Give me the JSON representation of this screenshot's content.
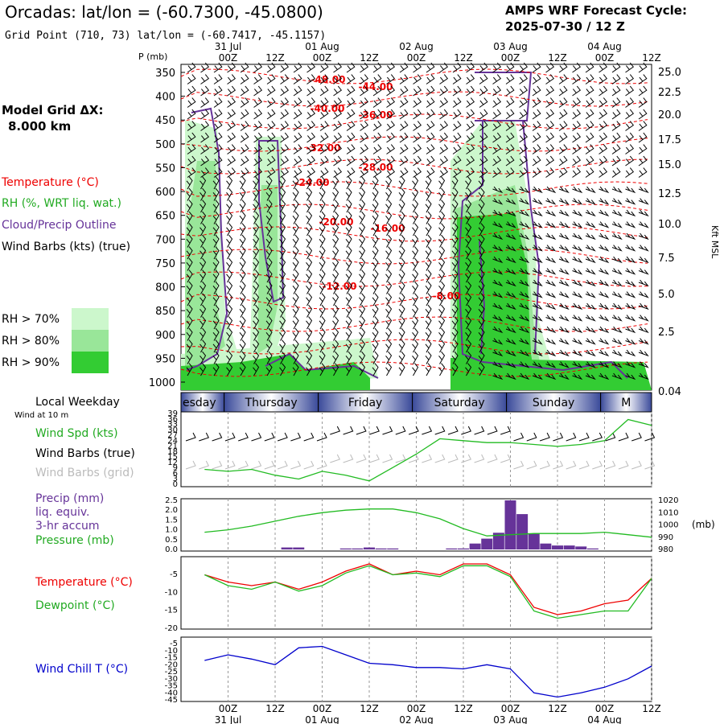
{
  "header": {
    "title": "Orcadas:  lat/lon = (-60.7300, -45.0800)",
    "grid_point": "Grid Point (710, 73) lat/lon = (-60.7417, -45.1157)",
    "cycle_label": "AMPS WRF Forecast Cycle:",
    "cycle_value": "2025-07-30 / 12  Z"
  },
  "sidebar": {
    "model_grid_label": "Model Grid ΔX:",
    "model_grid_value": "8.000 km",
    "legend_temperature": "Temperature (°C)",
    "legend_rh": "RH (%, WRT liq. wat.)",
    "legend_cloud": "Cloud/Precip Outline",
    "legend_barbs": "Wind Barbs (kts) (true)",
    "rh_levels": [
      "RH > 70%",
      "RH > 80%",
      "RH > 90%"
    ],
    "local_weekday": "Local Weekday",
    "wind_at": "Wind at 10 m",
    "wind_spd": "Wind Spd (kts)",
    "wind_barbs_true": "Wind Barbs (true)",
    "wind_barbs_grid": "Wind Barbs (grid)",
    "precip_1": "Precip (mm)",
    "precip_2": "liq. equiv.",
    "precip_3": "3-hr accum",
    "pressure": "Pressure (mb)",
    "temperature": "Temperature (°C)",
    "dewpoint": "Dewpoint (°C)",
    "wind_chill": "Wind Chill T (°C)"
  },
  "colors": {
    "rh70": "#ccf7cc",
    "rh80": "#99e699",
    "rh90": "#33cc33",
    "temp": "#ee0000",
    "cloud": "#663399",
    "green_line": "#22bb22",
    "precip": "#663399",
    "windchill": "#0000cc",
    "grid": "#999999"
  },
  "chart_data": [
    {
      "type": "heatmap",
      "title": "Time-height cross section",
      "ylabel_left": "P (mb)",
      "ylabel_right": "Kft MSL",
      "pressure_ticks": [
        "350",
        "400",
        "450",
        "500",
        "550",
        "600",
        "650",
        "700",
        "750",
        "800",
        "850",
        "900",
        "950",
        "1000"
      ],
      "height_ticks": [
        "25.0",
        "22.5",
        "20.0",
        "17.5",
        "15.0",
        "12.5",
        "10.0",
        "7.5",
        "5.0",
        "2.5",
        "0.04"
      ],
      "time_ticks": [
        "00Z",
        "12Z",
        "00Z",
        "12Z",
        "00Z",
        "12Z",
        "00Z",
        "12Z",
        "00Z",
        "12Z"
      ],
      "date_ticks": [
        "31 Jul",
        "01 Aug",
        "02 Aug",
        "03 Aug",
        "04 Aug"
      ],
      "temperature_labels": [
        "-48.00",
        "-44.00",
        "-40.00",
        "-36.00",
        "-32.00",
        "-28.00",
        "-24.00",
        "-20.00",
        "-16.00",
        "-12.00",
        "-8.00"
      ]
    },
    {
      "type": "line",
      "title": "Local Weekday / 10 m wind",
      "weekdays": [
        "esday",
        "Thursday",
        "Friday",
        "Saturday",
        "Sunday",
        "M"
      ],
      "y_ticks": [
        "39",
        "36",
        "33",
        "30",
        "27",
        "24",
        "21",
        "18",
        "15",
        "12",
        "9",
        "6",
        "3",
        "0"
      ],
      "series": [
        {
          "name": "Wind Spd (kts)",
          "x_hours": [
            0,
            6,
            12,
            18,
            24,
            30,
            36,
            42,
            48,
            54,
            60,
            66,
            72,
            78,
            84,
            90,
            96,
            102,
            108,
            114
          ],
          "values": [
            9,
            8,
            9,
            6,
            4,
            8,
            6,
            3,
            10,
            17,
            25,
            24,
            23,
            23,
            22,
            21,
            22,
            24,
            35,
            32
          ]
        }
      ]
    },
    {
      "type": "bar",
      "title": "Precip / Pressure",
      "y_ticks_left": [
        "2.5",
        "2.0",
        "1.5",
        "1.0",
        "0.5",
        "0.0"
      ],
      "y_ticks_right": [
        "1020",
        "1010",
        "1000",
        "990",
        "980"
      ],
      "ylabel_right": "(mb)",
      "precip": {
        "x_hours": [
          15,
          18,
          21,
          24,
          27,
          30,
          33,
          36,
          39,
          42,
          45,
          48,
          51,
          54,
          57,
          60,
          63,
          66,
          69,
          72,
          75,
          78,
          81,
          84,
          87,
          90,
          93,
          96,
          99,
          102,
          105,
          108,
          111,
          114
        ],
        "values": [
          0,
          0,
          0.1,
          0.1,
          0,
          0,
          0,
          0.05,
          0.05,
          0.1,
          0.05,
          0.05,
          0,
          0,
          0,
          0,
          0.05,
          0.05,
          0.3,
          0.55,
          0.85,
          2.5,
          1.8,
          0.8,
          0.3,
          0.2,
          0.2,
          0.15,
          0.05,
          0,
          0,
          0,
          0,
          0
        ]
      },
      "series": [
        {
          "name": "Pressure (mb)",
          "x_hours": [
            0,
            6,
            12,
            18,
            24,
            30,
            36,
            42,
            48,
            54,
            60,
            66,
            72,
            78,
            84,
            90,
            96,
            102,
            108,
            114
          ],
          "values": [
            994,
            996,
            999,
            1003,
            1007,
            1010,
            1012,
            1013,
            1013,
            1010,
            1005,
            997,
            991,
            992,
            993,
            993,
            993,
            994,
            992,
            990
          ]
        }
      ]
    },
    {
      "type": "line",
      "title": "Temperature / Dewpoint",
      "y_ticks": [
        "-5",
        "-10",
        "-15",
        "-20"
      ],
      "series": [
        {
          "name": "Temperature (°C)",
          "x_hours": [
            0,
            6,
            12,
            18,
            24,
            30,
            36,
            42,
            48,
            54,
            60,
            66,
            72,
            78,
            84,
            90,
            96,
            102,
            108,
            114
          ],
          "values": [
            -5,
            -7,
            -8,
            -7,
            -9,
            -7,
            -4,
            -2,
            -5,
            -4,
            -5,
            -2,
            -2,
            -5,
            -14,
            -16,
            -15,
            -13,
            -12,
            -6
          ]
        },
        {
          "name": "Dewpoint (°C)",
          "x_hours": [
            0,
            6,
            12,
            18,
            24,
            30,
            36,
            42,
            48,
            54,
            60,
            66,
            72,
            78,
            84,
            90,
            96,
            102,
            108,
            114
          ],
          "values": [
            -5,
            -8,
            -9,
            -7,
            -9.5,
            -8,
            -4.5,
            -2.5,
            -5,
            -4.5,
            -5.5,
            -2.5,
            -2.5,
            -5.5,
            -15,
            -17,
            -16,
            -15,
            -15,
            -6
          ]
        }
      ]
    },
    {
      "type": "line",
      "title": "Wind Chill",
      "y_ticks": [
        "-5",
        "-10",
        "-15",
        "-20",
        "-25",
        "-30",
        "-35",
        "-40",
        "-45"
      ],
      "series": [
        {
          "name": "Wind Chill T (°C)",
          "x_hours": [
            0,
            6,
            12,
            18,
            24,
            30,
            36,
            42,
            48,
            54,
            60,
            66,
            72,
            78,
            84,
            90,
            96,
            102,
            108,
            114
          ],
          "values": [
            -17,
            -13,
            -16,
            -20,
            -8,
            -7,
            -13,
            -19,
            -20,
            -22,
            -22,
            -23,
            -20,
            -23,
            -40,
            -43,
            -40,
            -36,
            -30,
            -21
          ]
        }
      ]
    }
  ]
}
